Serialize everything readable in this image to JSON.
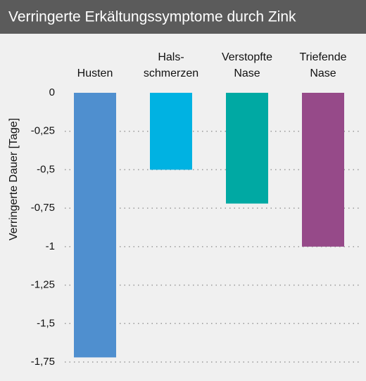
{
  "chart_data": {
    "type": "bar",
    "title": "Verringerte Erkältungssymptome durch Zink",
    "y_label": "Verringerte Dauer [Tage]",
    "categories": [
      [
        "Husten"
      ],
      [
        "Hals-",
        "schmerzen"
      ],
      [
        "Verstopfte",
        "Nase"
      ],
      [
        "Triefende",
        "Nase"
      ]
    ],
    "values": [
      -1.72,
      -0.5,
      -0.72,
      -1
    ],
    "colors": [
      "#4f8fcf",
      "#00b2e2",
      "#00a9a3",
      "#964a89"
    ],
    "ylim": [
      0,
      -1.75
    ],
    "yticks": [
      0,
      {
        "value": -0.25,
        "label": "-0,25"
      },
      {
        "value": -0.5,
        "label": "-0,5"
      },
      {
        "value": -0.75,
        "label": "-0,75"
      },
      -1,
      {
        "value": -1.25,
        "label": "-1,25"
      },
      {
        "value": -1.5,
        "label": "-1,5"
      },
      {
        "value": -1.75,
        "label": "-1,75"
      }
    ],
    "grid": true
  }
}
